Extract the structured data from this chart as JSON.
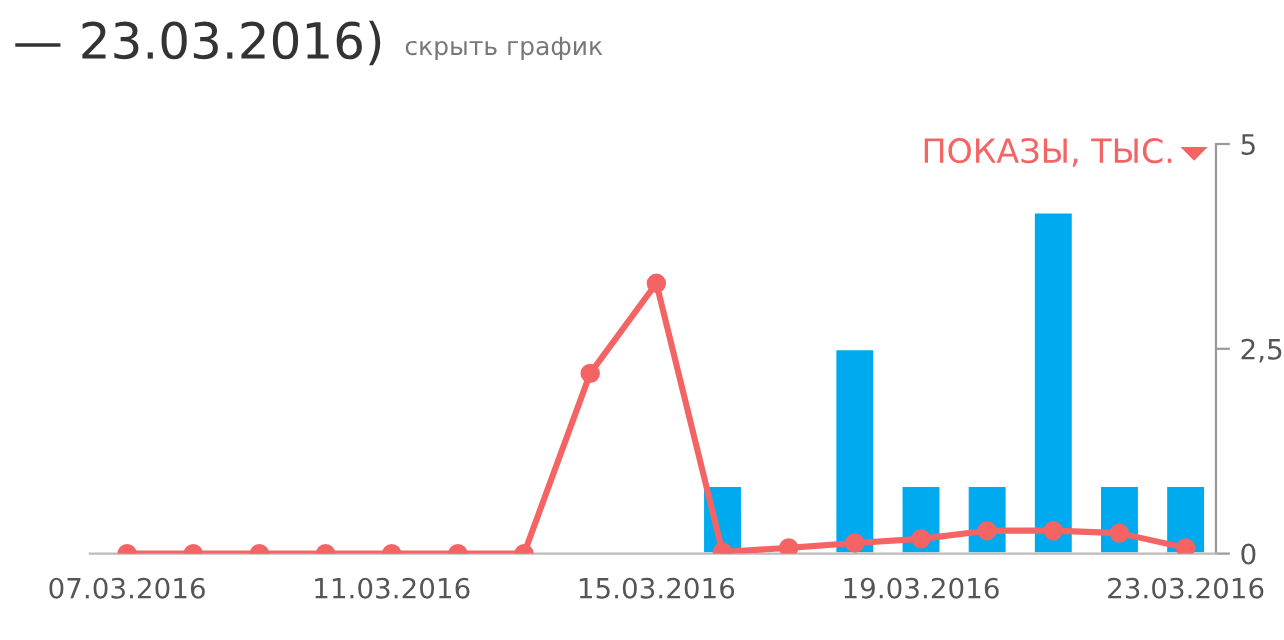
{
  "chart_data": {
    "type": "bar",
    "title": "— 23.03.2016)",
    "subtitle": "скрыть график",
    "ylabel": "ПОКАЗЫ, ТЫС.",
    "xlim": [
      "2016-03-06T10:30",
      "2016-03-23T11:00"
    ],
    "xticks": [
      {
        "value": "2016-03-07",
        "label": "07.03.2016"
      },
      {
        "value": "2016-03-11",
        "label": "11.03.2016"
      },
      {
        "value": "2016-03-15",
        "label": "15.03.2016"
      },
      {
        "value": "2016-03-19",
        "label": "19.03.2016"
      },
      {
        "value": "2016-03-23",
        "label": "23.03.2016"
      }
    ],
    "ylim": [
      0,
      5
    ],
    "yticks": [
      0,
      {
        "value": 2.5,
        "label": "2,5"
      },
      5
    ],
    "grid": false,
    "legend": false,
    "series": [
      {
        "color": "#00aaee",
        "x": [
          "2016-03-16",
          "2016-03-18",
          "2016-03-19",
          "2016-03-20",
          "2016-03-21",
          "2016-03-22",
          "2016-03-23"
        ],
        "values": [
          0.83,
          2.5,
          0.83,
          0.83,
          4.17,
          0.83,
          0.83
        ]
      },
      {
        "type": "line",
        "color": "#f46464",
        "marker": "circle",
        "line_style": "solid",
        "x": [
          "2016-03-07",
          "2016-03-08",
          "2016-03-09",
          "2016-03-10",
          "2016-03-11",
          "2016-03-12",
          "2016-03-13",
          "2016-03-14",
          "2016-03-15",
          "2016-03-16",
          "2016-03-17",
          "2016-03-18",
          "2016-03-19",
          "2016-03-20",
          "2016-03-21",
          "2016-03-22",
          "2016-03-23"
        ],
        "values": [
          0,
          0,
          0,
          0,
          0,
          0,
          0,
          2.2,
          3.3,
          0.02,
          0.07,
          0.13,
          0.18,
          0.28,
          0.28,
          0.25,
          0.07
        ]
      }
    ]
  }
}
